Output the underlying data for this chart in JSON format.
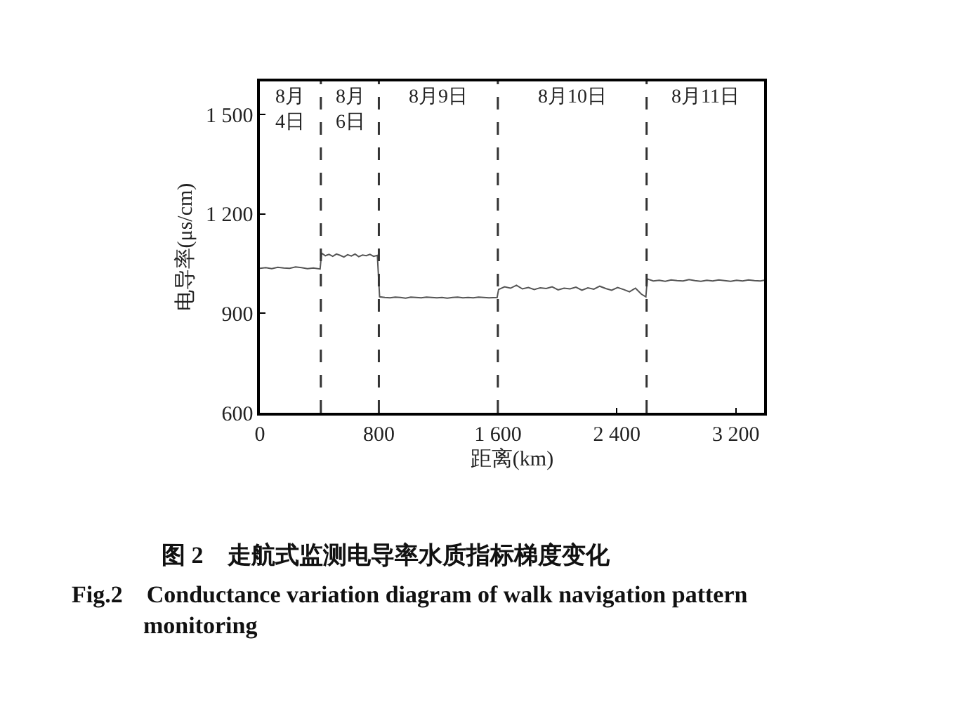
{
  "chart_data": {
    "type": "line",
    "title": "图 2　走航式监测电导率水质指标梯度变化",
    "subtitle": "Fig.2　Conductance variation diagram of walk navigation pattern monitoring",
    "xlabel": "距离(km)",
    "ylabel": "电导率(μs/cm)",
    "xlim": [
      0,
      3390
    ],
    "xticks": [
      0,
      800,
      {
        "value": 1600,
        "label": "1 600"
      },
      {
        "value": 2400,
        "label": "2 400"
      },
      {
        "value": 3200,
        "label": "3 200"
      }
    ],
    "ylim": [
      600,
      1600
    ],
    "yticks": [
      600,
      900,
      {
        "value": 1200,
        "label": "1 200"
      },
      {
        "value": 1500,
        "label": "1 500"
      }
    ],
    "grid": false,
    "marker": "none",
    "line_style": "solid",
    "series": [
      {
        "color": "#555555",
        "x": [
          0,
          40,
          80,
          120,
          160,
          200,
          240,
          280,
          320,
          360,
          405,
          415,
          440,
          465,
          490,
          515,
          540,
          565,
          590,
          615,
          640,
          665,
          690,
          715,
          740,
          765,
          790,
          805,
          840,
          875,
          910,
          945,
          980,
          1015,
          1050,
          1085,
          1120,
          1155,
          1190,
          1225,
          1260,
          1295,
          1330,
          1365,
          1400,
          1435,
          1470,
          1505,
          1540,
          1595,
          1605,
          1645,
          1685,
          1725,
          1765,
          1805,
          1845,
          1885,
          1925,
          1965,
          2005,
          2045,
          2085,
          2125,
          2165,
          2205,
          2245,
          2285,
          2325,
          2365,
          2405,
          2445,
          2485,
          2525,
          2565,
          2595,
          2605,
          2645,
          2685,
          2725,
          2765,
          2805,
          2845,
          2885,
          2925,
          2965,
          3005,
          3045,
          3085,
          3125,
          3165,
          3205,
          3245,
          3285,
          3325,
          3365,
          3390
        ],
        "values": [
          1036,
          1038,
          1035,
          1039,
          1037,
          1036,
          1040,
          1038,
          1035,
          1037,
          1034,
          1082,
          1074,
          1078,
          1072,
          1079,
          1075,
          1070,
          1077,
          1073,
          1079,
          1071,
          1076,
          1074,
          1078,
          1072,
          1075,
          950,
          948,
          947,
          949,
          948,
          946,
          949,
          948,
          947,
          949,
          948,
          947,
          948,
          946,
          948,
          949,
          947,
          948,
          947,
          949,
          948,
          947,
          948,
          972,
          980,
          976,
          985,
          974,
          978,
          972,
          977,
          975,
          980,
          971,
          976,
          974,
          979,
          970,
          977,
          973,
          982,
          975,
          970,
          978,
          972,
          965,
          976,
          958,
          950,
          1004,
          998,
          1000,
          997,
          1001,
          999,
          998,
          1002,
          999,
          997,
          1000,
          998,
          1001,
          999,
          997,
          1000,
          998,
          1001,
          999,
          998,
          1000
        ]
      }
    ],
    "ref_lines": [
      {
        "axis": "x",
        "value": 410,
        "line_style": "dashed"
      },
      {
        "axis": "x",
        "value": 800,
        "line_style": "dashed"
      },
      {
        "axis": "x",
        "value": 1600,
        "line_style": "dashed"
      },
      {
        "axis": "x",
        "value": 2600,
        "line_style": "dashed"
      }
    ],
    "annotations": [
      "8月\n4日",
      "8月\n6日",
      "8月9日",
      "8月10日",
      "8月11日"
    ]
  }
}
